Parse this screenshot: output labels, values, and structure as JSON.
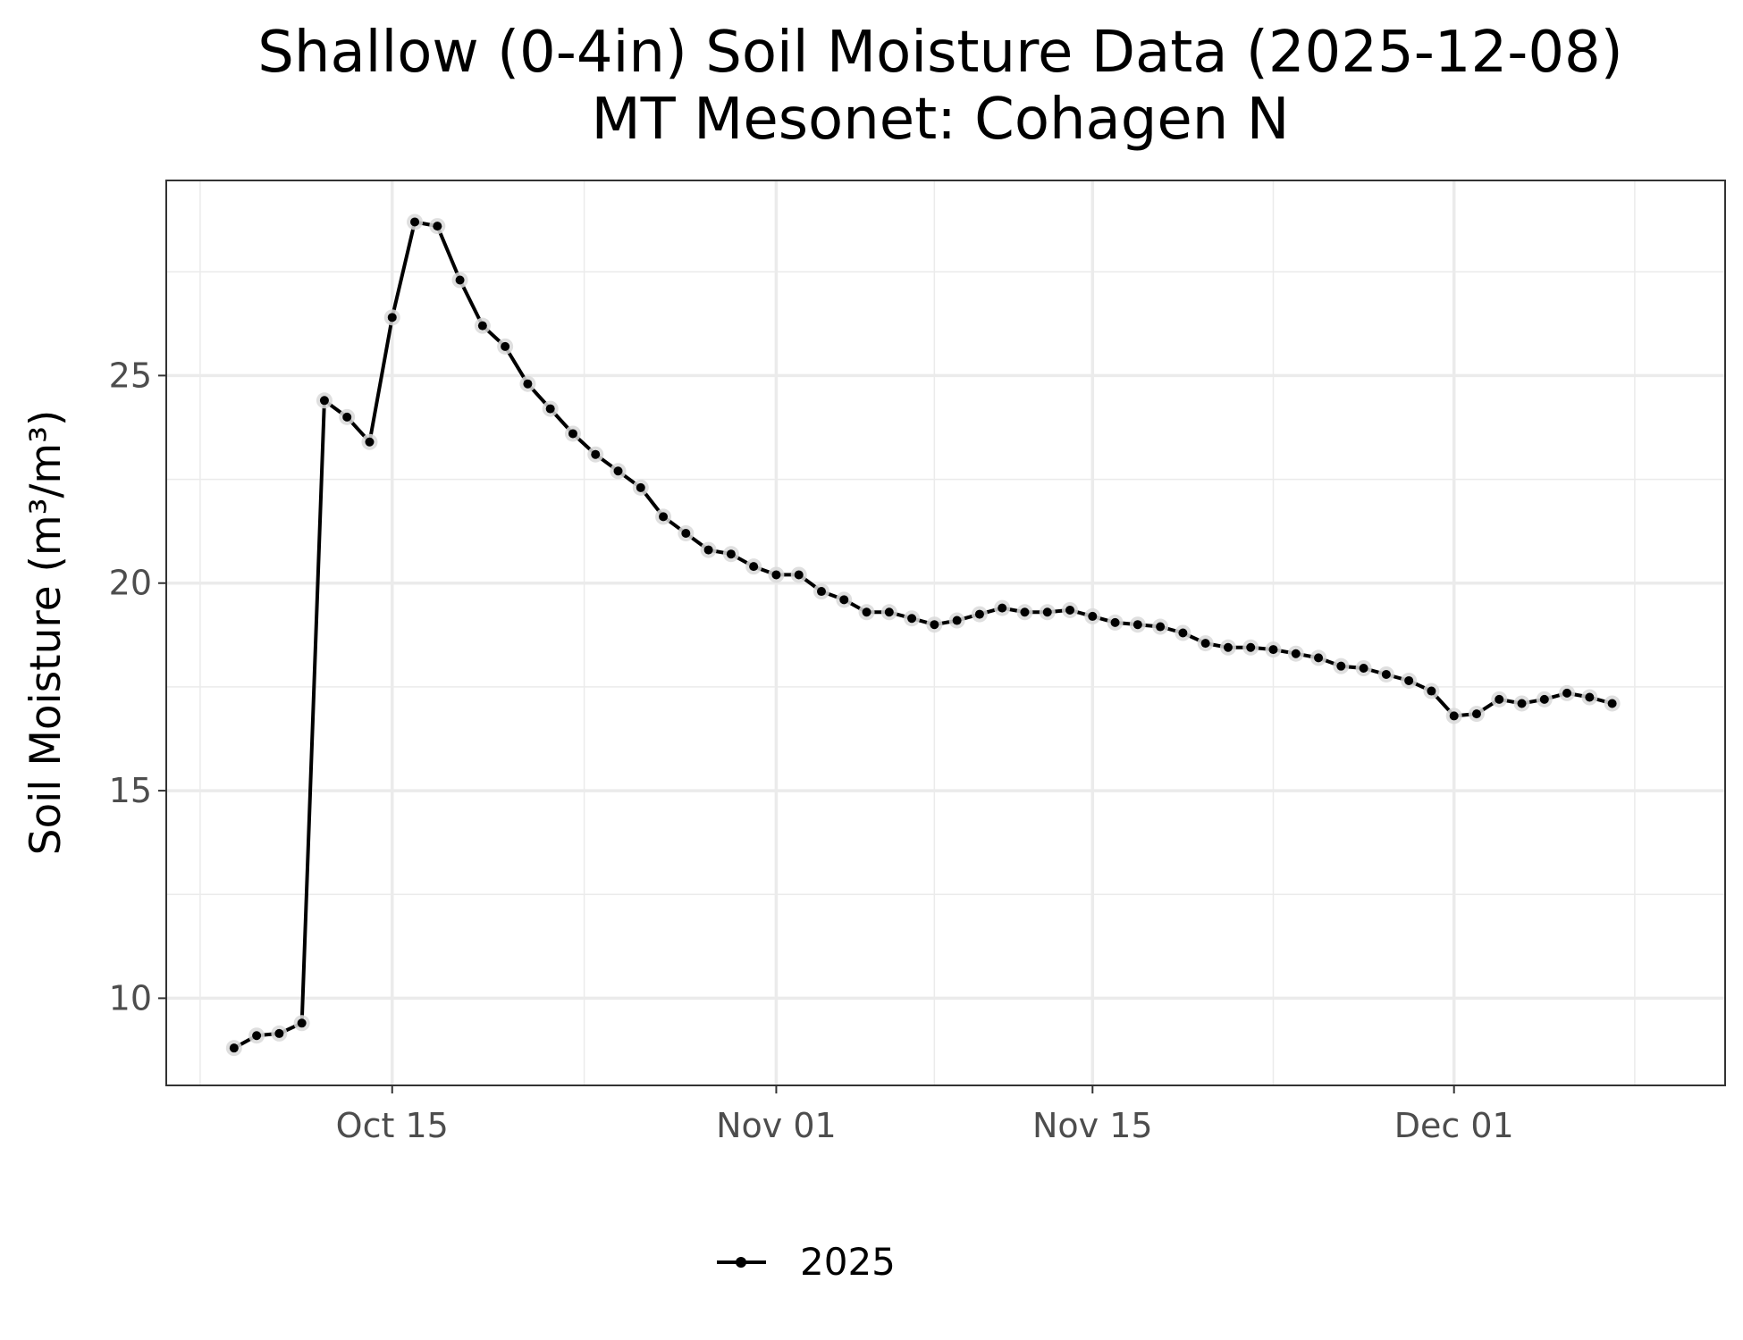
{
  "chart_data": {
    "type": "line",
    "title": "Shallow (0-4in) Soil Moisture Data (2025-12-08)",
    "subtitle": "MT Mesonet: Cohagen N",
    "xlabel": "",
    "ylabel": "Soil Moisture (m³/m³)",
    "x_axis": {
      "type": "date",
      "range": [
        "2025-10-05",
        "2025-12-13"
      ],
      "ticks": [
        {
          "date": "2025-10-15",
          "label": "Oct 15"
        },
        {
          "date": "2025-11-01",
          "label": "Nov 01"
        },
        {
          "date": "2025-11-15",
          "label": "Nov 15"
        },
        {
          "date": "2025-12-01",
          "label": "Dec 01"
        }
      ]
    },
    "y_axis": {
      "range": [
        7.9,
        29.7
      ],
      "ticks": [
        10,
        15,
        20,
        25
      ]
    },
    "grid": true,
    "legend": {
      "position": "bottom"
    },
    "series": [
      {
        "name": "2025",
        "color": "#000000",
        "x": [
          "2025-10-08",
          "2025-10-09",
          "2025-10-10",
          "2025-10-11",
          "2025-10-12",
          "2025-10-13",
          "2025-10-14",
          "2025-10-15",
          "2025-10-16",
          "2025-10-17",
          "2025-10-18",
          "2025-10-19",
          "2025-10-20",
          "2025-10-21",
          "2025-10-22",
          "2025-10-23",
          "2025-10-24",
          "2025-10-25",
          "2025-10-26",
          "2025-10-27",
          "2025-10-28",
          "2025-10-29",
          "2025-10-30",
          "2025-10-31",
          "2025-11-01",
          "2025-11-02",
          "2025-11-03",
          "2025-11-04",
          "2025-11-05",
          "2025-11-06",
          "2025-11-07",
          "2025-11-08",
          "2025-11-09",
          "2025-11-10",
          "2025-11-11",
          "2025-11-12",
          "2025-11-13",
          "2025-11-14",
          "2025-11-15",
          "2025-11-16",
          "2025-11-17",
          "2025-11-18",
          "2025-11-19",
          "2025-11-20",
          "2025-11-21",
          "2025-11-22",
          "2025-11-23",
          "2025-11-24",
          "2025-11-25",
          "2025-11-26",
          "2025-11-27",
          "2025-11-28",
          "2025-11-29",
          "2025-11-30",
          "2025-12-01",
          "2025-12-02",
          "2025-12-03",
          "2025-12-04",
          "2025-12-05",
          "2025-12-06",
          "2025-12-07",
          "2025-12-08"
        ],
        "y": [
          8.8,
          9.1,
          9.15,
          9.4,
          24.4,
          24.0,
          23.4,
          26.4,
          28.7,
          28.6,
          27.3,
          26.2,
          25.7,
          24.8,
          24.2,
          23.6,
          23.1,
          22.7,
          22.3,
          21.6,
          21.2,
          20.8,
          20.7,
          20.4,
          20.2,
          20.2,
          19.8,
          19.6,
          19.3,
          19.3,
          19.15,
          19.0,
          19.1,
          19.25,
          19.4,
          19.3,
          19.3,
          19.35,
          19.2,
          19.05,
          19.0,
          18.95,
          18.8,
          18.55,
          18.45,
          18.45,
          18.4,
          18.3,
          18.2,
          18.0,
          17.95,
          17.8,
          17.65,
          17.4,
          16.8,
          16.85,
          17.2,
          17.1,
          17.2,
          17.35,
          17.25,
          17.1
        ]
      }
    ]
  }
}
